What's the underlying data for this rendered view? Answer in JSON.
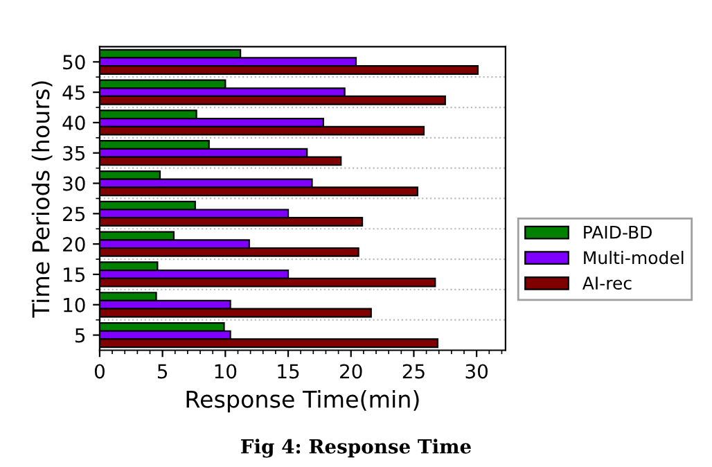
{
  "chart_data": {
    "type": "bar",
    "orientation": "horizontal",
    "xlabel": "Response Time(min)",
    "ylabel": "Time Periods (hours)",
    "categories": [
      "50",
      "45",
      "40",
      "35",
      "30",
      "25",
      "20",
      "15",
      "10",
      "5"
    ],
    "series": [
      {
        "name": "PAID-BD",
        "color": "#008000",
        "values": [
          11.2,
          10.0,
          7.7,
          8.7,
          4.8,
          7.6,
          5.9,
          4.6,
          4.5,
          9.9
        ]
      },
      {
        "name": "Multi-model",
        "color": "#8000ff",
        "values": [
          20.4,
          19.5,
          17.8,
          16.5,
          16.9,
          15.0,
          11.9,
          15.0,
          10.4,
          10.4
        ]
      },
      {
        "name": "AI-rec",
        "color": "#800000",
        "values": [
          30.1,
          27.5,
          25.8,
          19.2,
          25.3,
          20.9,
          20.6,
          26.7,
          21.6,
          26.9
        ]
      }
    ],
    "xlim": [
      0,
      32.3
    ],
    "xticks": [
      0,
      5,
      10,
      15,
      20,
      25,
      30
    ],
    "grid": "y",
    "legend": "right",
    "annotations": [
      "Fig 4: Response Time"
    ]
  }
}
